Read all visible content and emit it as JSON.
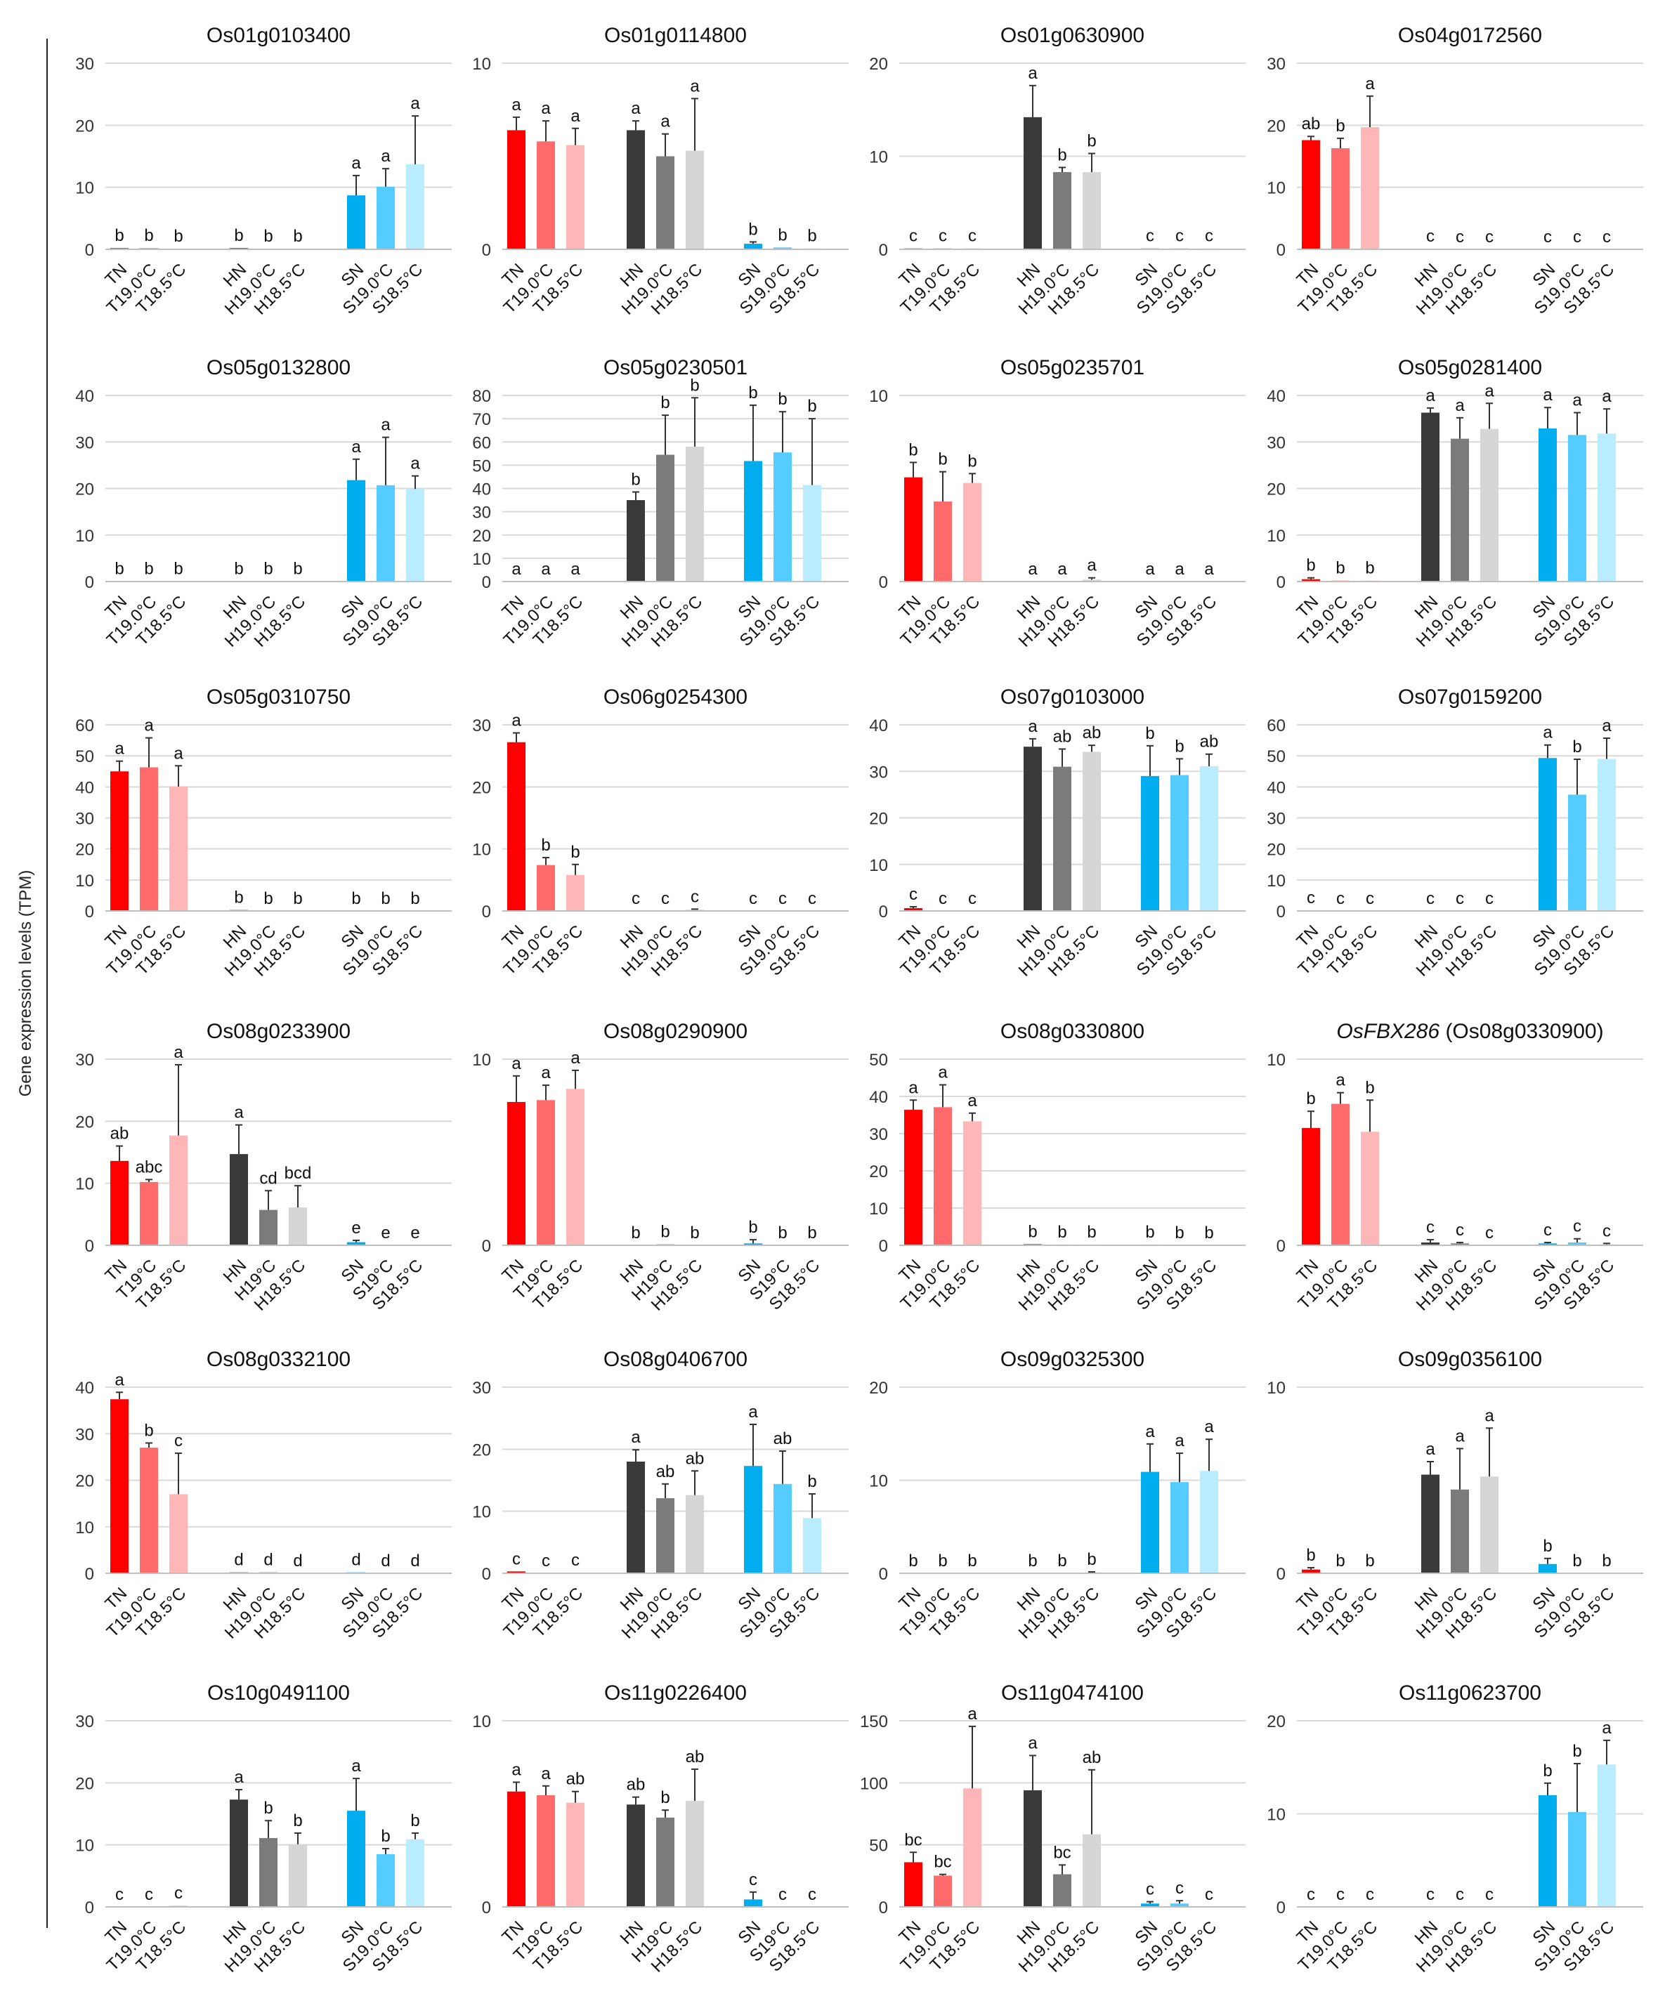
{
  "figure": {
    "ylabel": "Gene expression levels (TPM)",
    "colors": {
      "TN": "#ff0000",
      "T19": "#ff6b6b",
      "T18": "#ffb6b6",
      "HN": "#3a3a3a",
      "H19": "#7b7b7b",
      "H18": "#d6d6d6",
      "SN": "#00aeef",
      "S19": "#55ccff",
      "S18": "#b9ecff"
    }
  },
  "chart_data": [
    {
      "type": "bar",
      "title": "Os01g0103400",
      "ylim": [
        0,
        30
      ],
      "yticks": [
        0,
        10,
        20,
        30
      ],
      "categories": [
        "TN",
        "T19.0°C",
        "T18.5°C",
        "HN",
        "H19.0°C",
        "H18.5°C",
        "SN",
        "S19.0°C",
        "S18.5°C"
      ],
      "values": [
        0.2,
        0.2,
        0.1,
        0.2,
        0.1,
        0.1,
        8.7,
        10.1,
        13.7
      ],
      "errors": [
        0,
        0,
        0,
        0,
        0,
        0,
        3.2,
        2.9,
        7.8
      ],
      "letters": [
        "b",
        "b",
        "b",
        "b",
        "b",
        "b",
        "a",
        "a",
        "a"
      ]
    },
    {
      "type": "bar",
      "title": "Os01g0114800",
      "ylim": [
        0,
        10
      ],
      "yticks": [
        0,
        10
      ],
      "categories": [
        "TN",
        "T19.0°C",
        "T18.5°C",
        "HN",
        "H19.0°C",
        "H18.5°C",
        "SN",
        "S19.0°C",
        "S18.5°C"
      ],
      "values": [
        6.4,
        5.8,
        5.6,
        6.4,
        5,
        5.3,
        0.3,
        0.1,
        0.05
      ],
      "errors": [
        0.7,
        1.1,
        0.9,
        0.5,
        1.2,
        2.8,
        0.1,
        0,
        0
      ],
      "letters": [
        "a",
        "a",
        "a",
        "a",
        "a",
        "a",
        "b",
        "b",
        "b"
      ]
    },
    {
      "type": "bar",
      "title": "Os01g0630900",
      "ylim": [
        0,
        20
      ],
      "yticks": [
        0,
        10,
        20
      ],
      "categories": [
        "TN",
        "T19.0°C",
        "T18.5°C",
        "HN",
        "H19.0°C",
        "H18.5°C",
        "SN",
        "S19.0°C",
        "S18.5°C"
      ],
      "values": [
        0.1,
        0.1,
        0.1,
        14.2,
        8.3,
        8.3,
        0.1,
        0.1,
        0.1
      ],
      "errors": [
        0,
        0,
        0,
        3.4,
        0.5,
        2.0,
        0,
        0,
        0
      ],
      "letters": [
        "c",
        "c",
        "c",
        "a",
        "b",
        "b",
        "c",
        "c",
        "c"
      ]
    },
    {
      "type": "bar",
      "title": "Os04g0172560",
      "ylim": [
        0,
        30
      ],
      "yticks": [
        0,
        10,
        20,
        30
      ],
      "categories": [
        "TN",
        "T19.0°C",
        "T18.5°C",
        "HN",
        "H19.0°C",
        "H18.5°C",
        "SN",
        "S19.0°C",
        "S18.5°C"
      ],
      "values": [
        17.6,
        16.3,
        19.7,
        0.1,
        0,
        0,
        0,
        0,
        0
      ],
      "errors": [
        0.6,
        1.6,
        5.0,
        0,
        0,
        0,
        0,
        0,
        0
      ],
      "letters": [
        "ab",
        "b",
        "a",
        "c",
        "c",
        "c",
        "c",
        "c",
        "c"
      ]
    },
    {
      "type": "bar",
      "title": "Os05g0132800",
      "ylim": [
        0,
        40
      ],
      "yticks": [
        0,
        10,
        20,
        30,
        40
      ],
      "categories": [
        "TN",
        "T19.0°C",
        "T18.5°C",
        "HN",
        "H19.0°C",
        "H18.5°C",
        "SN",
        "S19.0°C",
        "S18.5°C"
      ],
      "values": [
        0.1,
        0.1,
        0.1,
        0.1,
        0.1,
        0.1,
        21.8,
        20.7,
        19.9
      ],
      "errors": [
        0,
        0,
        0,
        0,
        0,
        0,
        4.5,
        10.3,
        2.8
      ],
      "letters": [
        "b",
        "b",
        "b",
        "b",
        "b",
        "b",
        "a",
        "a",
        "a"
      ]
    },
    {
      "type": "bar",
      "title": "Os05g0230501",
      "ylim": [
        0,
        80
      ],
      "yticks": [
        0,
        10,
        20,
        30,
        40,
        50,
        60,
        70,
        80
      ],
      "categories": [
        "TN",
        "T19.0°C",
        "T18.5°C",
        "HN",
        "H19.0°C",
        "H18.5°C",
        "SN",
        "S19.0°C",
        "S18.5°C"
      ],
      "values": [
        0,
        0,
        0,
        35,
        54.5,
        58,
        51.8,
        55.5,
        41.5
      ],
      "errors": [
        0,
        0,
        0,
        3.5,
        17,
        21,
        24,
        17.5,
        28.5
      ],
      "letters": [
        "a",
        "a",
        "a",
        "b",
        "b",
        "b",
        "b",
        "b",
        "b"
      ]
    },
    {
      "type": "bar",
      "title": "Os05g0235701",
      "ylim": [
        0,
        10
      ],
      "yticks": [
        0,
        10
      ],
      "categories": [
        "TN",
        "T19.0°C",
        "T18.5°C",
        "HN",
        "H19.0°C",
        "H18.5°C",
        "SN",
        "S19.0°C",
        "S18.5°C"
      ],
      "values": [
        5.6,
        4.3,
        5.3,
        0,
        0,
        0.1,
        0,
        0,
        0
      ],
      "errors": [
        0.8,
        1.6,
        0.5,
        0,
        0,
        0.1,
        0,
        0,
        0
      ],
      "letters": [
        "b",
        "b",
        "b",
        "a",
        "a",
        "a",
        "a",
        "a",
        "a"
      ]
    },
    {
      "type": "bar",
      "title": "Os05g0281400",
      "ylim": [
        0,
        40
      ],
      "yticks": [
        0,
        10,
        20,
        30,
        40
      ],
      "categories": [
        "TN",
        "T19.0°C",
        "T18.5°C",
        "HN",
        "H19.0°C",
        "H18.5°C",
        "SN",
        "S19.0°C",
        "S18.5°C"
      ],
      "values": [
        0.5,
        0.2,
        0.2,
        36.3,
        30.7,
        32.8,
        32.9,
        31.5,
        31.8
      ],
      "errors": [
        0.3,
        0,
        0,
        1.0,
        4.5,
        5.5,
        4.5,
        4.8,
        5.3
      ],
      "letters": [
        "b",
        "b",
        "b",
        "a",
        "a",
        "a",
        "a",
        "a",
        "a"
      ]
    },
    {
      "type": "bar",
      "title": "Os05g0310750",
      "ylim": [
        0,
        60
      ],
      "yticks": [
        0,
        10,
        20,
        30,
        40,
        50,
        60
      ],
      "categories": [
        "TN",
        "T19.0°C",
        "T18.5°C",
        "HN",
        "H19.0°C",
        "H18.5°C",
        "SN",
        "S19.0°C",
        "S18.5°C"
      ],
      "values": [
        45,
        46.3,
        40.1,
        0.3,
        0,
        0,
        0,
        0,
        0
      ],
      "errors": [
        3.3,
        9.5,
        6.7,
        0,
        0,
        0,
        0,
        0,
        0
      ],
      "letters": [
        "a",
        "a",
        "a",
        "b",
        "b",
        "b",
        "b",
        "b",
        "b"
      ]
    },
    {
      "type": "bar",
      "title": "Os06g0254300",
      "ylim": [
        0,
        30
      ],
      "yticks": [
        0,
        10,
        20,
        30
      ],
      "categories": [
        "TN",
        "T19.0°C",
        "T18.5°C",
        "HN",
        "H19.0°C",
        "H18.5°C",
        "SN",
        "S19.0°C",
        "S18.5°C"
      ],
      "values": [
        27.2,
        7.4,
        5.8,
        0,
        0,
        0.2,
        0,
        0,
        0
      ],
      "errors": [
        1.5,
        1.2,
        1.7,
        0,
        0,
        0.1,
        0,
        0,
        0
      ],
      "letters": [
        "a",
        "b",
        "b",
        "c",
        "c",
        "c",
        "c",
        "c",
        "c"
      ]
    },
    {
      "type": "bar",
      "title": "Os07g0103000",
      "ylim": [
        0,
        40
      ],
      "yticks": [
        0,
        10,
        20,
        30,
        40
      ],
      "categories": [
        "TN",
        "T19.0°C",
        "T18.5°C",
        "HN",
        "H19.0°C",
        "H18.5°C",
        "SN",
        "S19.0°C",
        "S18.5°C"
      ],
      "values": [
        0.6,
        0,
        0,
        35.3,
        31,
        34.2,
        29,
        29.2,
        31.1
      ],
      "errors": [
        0.3,
        0,
        0,
        1.7,
        3.8,
        1.4,
        6.5,
        3.5,
        2.6
      ],
      "letters": [
        "c",
        "c",
        "c",
        "a",
        "ab",
        "ab",
        "b",
        "b",
        "ab"
      ]
    },
    {
      "type": "bar",
      "title": "Os07g0159200",
      "ylim": [
        0,
        60
      ],
      "yticks": [
        0,
        10,
        20,
        30,
        40,
        50,
        60
      ],
      "categories": [
        "TN",
        "T19.0°C",
        "T18.5°C",
        "HN",
        "H19.0°C",
        "H18.5°C",
        "SN",
        "S19.0°C",
        "S18.5°C"
      ],
      "values": [
        0.2,
        0,
        0,
        0,
        0,
        0,
        49.3,
        37.5,
        49
      ],
      "errors": [
        0,
        0,
        0,
        0,
        0,
        0,
        4.2,
        11.4,
        6.7
      ],
      "letters": [
        "c",
        "c",
        "c",
        "c",
        "c",
        "c",
        "a",
        "b",
        "a"
      ]
    },
    {
      "type": "bar",
      "title": "Os08g0233900",
      "ylim": [
        0,
        30
      ],
      "yticks": [
        0,
        10,
        20,
        30
      ],
      "categories": [
        "TN",
        "T19°C",
        "T18.5°C",
        "HN",
        "H19°C",
        "H18.5°C",
        "SN",
        "S19°C",
        "S18.5°C"
      ],
      "values": [
        13.6,
        10.2,
        17.7,
        14.7,
        5.7,
        6.1,
        0.5,
        0,
        0
      ],
      "errors": [
        2.4,
        0.4,
        11.4,
        4.7,
        3.1,
        3.5,
        0.3,
        0,
        0
      ],
      "letters": [
        "ab",
        "abc",
        "a",
        "a",
        "cd",
        "bcd",
        "e",
        "e",
        "e"
      ]
    },
    {
      "type": "bar",
      "title": "Os08g0290900",
      "ylim": [
        0,
        10
      ],
      "yticks": [
        0,
        10
      ],
      "categories": [
        "TN",
        "T19°C",
        "T18.5°C",
        "HN",
        "H19°C",
        "H18.5°C",
        "SN",
        "S19°C",
        "S18.5°C"
      ],
      "values": [
        7.7,
        7.8,
        8.4,
        0,
        0.05,
        0,
        0.1,
        0,
        0
      ],
      "errors": [
        1.4,
        0.8,
        1.0,
        0,
        0,
        0,
        0.2,
        0,
        0
      ],
      "letters": [
        "a",
        "a",
        "a",
        "b",
        "b",
        "b",
        "b",
        "b",
        "b"
      ]
    },
    {
      "type": "bar",
      "title": "Os08g0330800",
      "ylim": [
        0,
        50
      ],
      "yticks": [
        0,
        10,
        20,
        30,
        40,
        50
      ],
      "categories": [
        "TN",
        "T19.0°C",
        "T18.5°C",
        "HN",
        "H19.0°C",
        "H18.5°C",
        "SN",
        "S19.0°C",
        "S18.5°C"
      ],
      "values": [
        36.4,
        37.1,
        33.3,
        0.3,
        0.2,
        0.2,
        0.2,
        0,
        0
      ],
      "errors": [
        2.6,
        6.0,
        2.2,
        0,
        0,
        0,
        0,
        0,
        0
      ],
      "letters": [
        "a",
        "a",
        "a",
        "b",
        "b",
        "b",
        "b",
        "b",
        "b"
      ]
    },
    {
      "type": "bar",
      "title": "OsFBX286 (Os08g0330900)",
      "title_italic": "OsFBX286",
      "title_rest": " (Os08g0330900)",
      "ylim": [
        0,
        10
      ],
      "yticks": [
        0,
        10
      ],
      "categories": [
        "TN",
        "T19.0°C",
        "T18.5°C",
        "HN",
        "H19.0°C",
        "H18.5°C",
        "SN",
        "S19.0°C",
        "S18.5°C"
      ],
      "values": [
        6.3,
        7.6,
        6.1,
        0.15,
        0.1,
        0,
        0.1,
        0.15,
        0.05
      ],
      "errors": [
        0.9,
        0.6,
        1.7,
        0.15,
        0.05,
        0,
        0.05,
        0.2,
        0.05
      ],
      "letters": [
        "b",
        "a",
        "b",
        "c",
        "c",
        "c",
        "c",
        "c",
        "c"
      ]
    },
    {
      "type": "bar",
      "title": "Os08g0332100",
      "ylim": [
        0,
        40
      ],
      "yticks": [
        0,
        10,
        20,
        30,
        40
      ],
      "categories": [
        "TN",
        "T19.0°C",
        "T18.5°C",
        "HN",
        "H19.0°C",
        "H18.5°C",
        "SN",
        "S19.0°C",
        "S18.5°C"
      ],
      "values": [
        37.4,
        27,
        17,
        0.2,
        0.2,
        0,
        0.2,
        0,
        0
      ],
      "errors": [
        1.5,
        1.0,
        8.8,
        0,
        0,
        0,
        0,
        0,
        0
      ],
      "letters": [
        "a",
        "b",
        "c",
        "d",
        "d",
        "d",
        "d",
        "d",
        "d"
      ]
    },
    {
      "type": "bar",
      "title": "Os08g0406700",
      "ylim": [
        0,
        30
      ],
      "yticks": [
        0,
        10,
        20,
        30
      ],
      "categories": [
        "TN",
        "T19.0°C",
        "T18.5°C",
        "HN",
        "H19.0°C",
        "H18.5°C",
        "SN",
        "S19.0°C",
        "S18.5°C"
      ],
      "values": [
        0.3,
        0,
        0.1,
        18,
        12.1,
        12.6,
        17.3,
        14.4,
        8.9
      ],
      "errors": [
        0,
        0,
        0,
        1.9,
        2.3,
        3.9,
        6.7,
        5.3,
        3.9
      ],
      "letters": [
        "c",
        "c",
        "c",
        "a",
        "ab",
        "ab",
        "a",
        "ab",
        "b"
      ]
    },
    {
      "type": "bar",
      "title": "Os09g0325300",
      "ylim": [
        0,
        20
      ],
      "yticks": [
        0,
        10,
        20
      ],
      "categories": [
        "TN",
        "T19.0°C",
        "T18.5°C",
        "HN",
        "H19.0°C",
        "H18.5°C",
        "SN",
        "S19.0°C",
        "S18.5°C"
      ],
      "values": [
        0,
        0,
        0,
        0,
        0,
        0.1,
        10.9,
        9.8,
        11
      ],
      "errors": [
        0,
        0,
        0,
        0,
        0,
        0.05,
        3.0,
        3.1,
        3.4
      ],
      "letters": [
        "b",
        "b",
        "b",
        "b",
        "b",
        "b",
        "a",
        "a",
        "a"
      ]
    },
    {
      "type": "bar",
      "title": "Os09g0356100",
      "ylim": [
        0,
        10
      ],
      "yticks": [
        0,
        10
      ],
      "categories": [
        "TN",
        "T19.0°C",
        "T18.5°C",
        "HN",
        "H19.0°C",
        "H18.5°C",
        "SN",
        "S19.0°C",
        "S18.5°C"
      ],
      "values": [
        0.2,
        0,
        0,
        5.3,
        4.5,
        5.2,
        0.5,
        0,
        0
      ],
      "errors": [
        0.1,
        0,
        0,
        0.7,
        2.2,
        2.6,
        0.3,
        0,
        0
      ],
      "letters": [
        "b",
        "b",
        "b",
        "a",
        "a",
        "a",
        "b",
        "b",
        "b"
      ]
    },
    {
      "type": "bar",
      "title": "Os10g0491100",
      "ylim": [
        0,
        30
      ],
      "yticks": [
        0,
        10,
        20,
        30
      ],
      "categories": [
        "TN",
        "T19.0°C",
        "T18.5°C",
        "HN",
        "H19.0°C",
        "H18.5°C",
        "SN",
        "S19.0°C",
        "S18.5°C"
      ],
      "values": [
        0,
        0,
        0.2,
        17.3,
        11.1,
        10.1,
        15.5,
        8.5,
        10.9
      ],
      "errors": [
        0,
        0,
        0,
        1.6,
        2.8,
        1.8,
        5.2,
        0.9,
        1.0
      ],
      "letters": [
        "c",
        "c",
        "c",
        "a",
        "b",
        "b",
        "a",
        "b",
        "b"
      ]
    },
    {
      "type": "bar",
      "title": "Os11g0226400",
      "ylim": [
        0,
        10
      ],
      "yticks": [
        0,
        10
      ],
      "categories": [
        "TN",
        "T19°C",
        "T18.5°C",
        "HN",
        "H19°C",
        "H18.5°C",
        "SN",
        "S19°C",
        "S18.5°C"
      ],
      "values": [
        6.2,
        6.0,
        5.6,
        5.5,
        4.8,
        5.7,
        0.4,
        0,
        0
      ],
      "errors": [
        0.5,
        0.5,
        0.6,
        0.4,
        0.4,
        1.7,
        0.4,
        0,
        0
      ],
      "letters": [
        "a",
        "a",
        "ab",
        "ab",
        "b",
        "ab",
        "c",
        "c",
        "c"
      ]
    },
    {
      "type": "bar",
      "title": "Os11g0474100",
      "ylim": [
        0,
        150
      ],
      "yticks": [
        0,
        50,
        100,
        150
      ],
      "categories": [
        "TN",
        "T19.0°C",
        "T18.5°C",
        "HN",
        "H19.0°C",
        "H18.5°C",
        "SN",
        "S19.0°C",
        "S18.5°C"
      ],
      "values": [
        36,
        25.2,
        95.5,
        94,
        26.3,
        58.5,
        2.7,
        2.7,
        0
      ],
      "errors": [
        8,
        1.0,
        50,
        28,
        7.5,
        52,
        1.5,
        2.3,
        0
      ],
      "letters": [
        "bc",
        "bc",
        "a",
        "a",
        "bc",
        "ab",
        "c",
        "c",
        "c"
      ]
    },
    {
      "type": "bar",
      "title": "Os11g0623700",
      "ylim": [
        0,
        20
      ],
      "yticks": [
        0,
        10,
        20
      ],
      "categories": [
        "TN",
        "T19.0°C",
        "T18.5°C",
        "HN",
        "H19.0°C",
        "H18.5°C",
        "SN",
        "S19.0°C",
        "S18.5°C"
      ],
      "values": [
        0,
        0,
        0,
        0,
        0,
        0,
        12,
        10.2,
        15.3
      ],
      "errors": [
        0,
        0,
        0,
        0,
        0,
        0,
        1.3,
        5.2,
        2.6
      ],
      "letters": [
        "c",
        "c",
        "c",
        "c",
        "c",
        "c",
        "b",
        "b",
        "a"
      ]
    }
  ]
}
